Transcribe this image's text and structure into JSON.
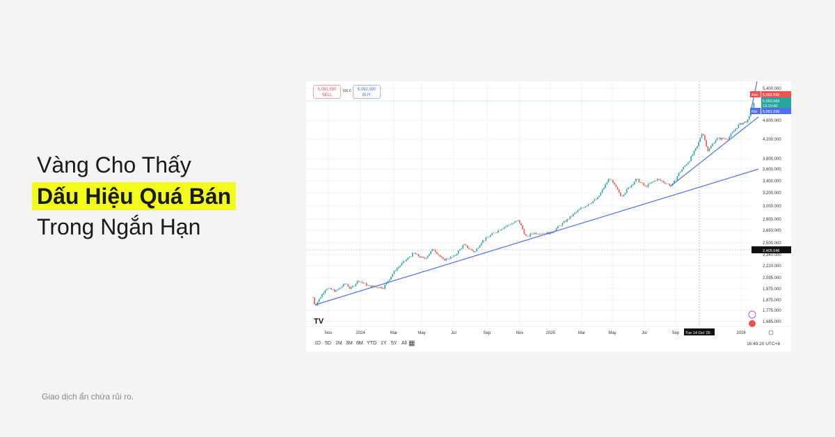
{
  "headline": {
    "line1": "Vàng Cho Thấy",
    "line2": "Dấu Hiệu Quá Bán",
    "line3": "Trong Ngắn Hạn",
    "highlight_color": "#f2fc1c"
  },
  "footnote": "Giao dịch ẩn chứa rủi ro.",
  "trade": {
    "sell_price": "5,091.590",
    "sell_label": "SELL",
    "spread": "100.0",
    "buy_price": "5,092.590",
    "buy_label": "BUY"
  },
  "price_tags": {
    "ask_label": "Ask",
    "ask": "5,092.590",
    "last": "5,092.065",
    "countdown": "13:10:40",
    "bid_label": "Bid",
    "bid": "5,091.590",
    "crosshair": "2,405.646"
  },
  "crosshair_date": "Tue 14 Oct '25",
  "ranges": [
    "1D",
    "5D",
    "1M",
    "3M",
    "6M",
    "YTD",
    "1Y",
    "5Y",
    "All"
  ],
  "clock": "16:49:20 UTC+8",
  "colors": {
    "up": "#26a69a",
    "down": "#ef5350",
    "trendline": "#4c6ef5"
  },
  "chart_data": {
    "type": "candlestick",
    "y_scale": "log",
    "y_ticks": [
      "5,400.000",
      "4,600.000",
      "4,200.000",
      "3,800.000",
      "3,600.000",
      "3,400.000",
      "3,200.000",
      "3,000.000",
      "2,800.000",
      "2,650.000",
      "2,500.000",
      "2,340.000",
      "2,220.000",
      "2,095.000",
      "1,975.000",
      "1,875.000",
      "1,775.000",
      "1,685.000"
    ],
    "x_ticks": [
      "Nov",
      "2024",
      "Mar",
      "May",
      "Jul",
      "Sep",
      "Nov",
      "2025",
      "Mar",
      "May",
      "Jul",
      "Sep",
      "2026"
    ],
    "series": [
      [
        "2023-10-02",
        1900
      ],
      [
        "2023-10-06",
        1820
      ],
      [
        "2023-10-27",
        1990
      ],
      [
        "2023-11-15",
        1960
      ],
      [
        "2023-12-04",
        2040
      ],
      [
        "2023-12-13",
        1980
      ],
      [
        "2023-12-28",
        2070
      ],
      [
        "2024-01-17",
        2010
      ],
      [
        "2024-02-14",
        1995
      ],
      [
        "2024-03-08",
        2180
      ],
      [
        "2024-04-12",
        2370
      ],
      [
        "2024-05-02",
        2300
      ],
      [
        "2024-05-20",
        2420
      ],
      [
        "2024-06-07",
        2290
      ],
      [
        "2024-06-28",
        2330
      ],
      [
        "2024-07-17",
        2470
      ],
      [
        "2024-08-07",
        2380
      ],
      [
        "2024-08-20",
        2510
      ],
      [
        "2024-09-26",
        2680
      ],
      [
        "2024-10-30",
        2790
      ],
      [
        "2024-11-14",
        2560
      ],
      [
        "2024-11-25",
        2620
      ],
      [
        "2024-12-31",
        2620
      ],
      [
        "2025-01-31",
        2800
      ],
      [
        "2025-02-24",
        2950
      ],
      [
        "2025-03-31",
        3120
      ],
      [
        "2025-04-22",
        3450
      ],
      [
        "2025-05-15",
        3150
      ],
      [
        "2025-06-13",
        3430
      ],
      [
        "2025-06-30",
        3300
      ],
      [
        "2025-07-22",
        3430
      ],
      [
        "2025-08-20",
        3320
      ],
      [
        "2025-09-02",
        3530
      ],
      [
        "2025-09-23",
        3780
      ],
      [
        "2025-10-08",
        4050
      ],
      [
        "2025-10-17",
        4350
      ],
      [
        "2025-10-28",
        3950
      ],
      [
        "2025-11-13",
        4200
      ],
      [
        "2025-12-05",
        4200
      ],
      [
        "2025-12-26",
        4500
      ],
      [
        "2026-01-13",
        4600
      ],
      [
        "2026-01-26",
        5090
      ]
    ]
  }
}
